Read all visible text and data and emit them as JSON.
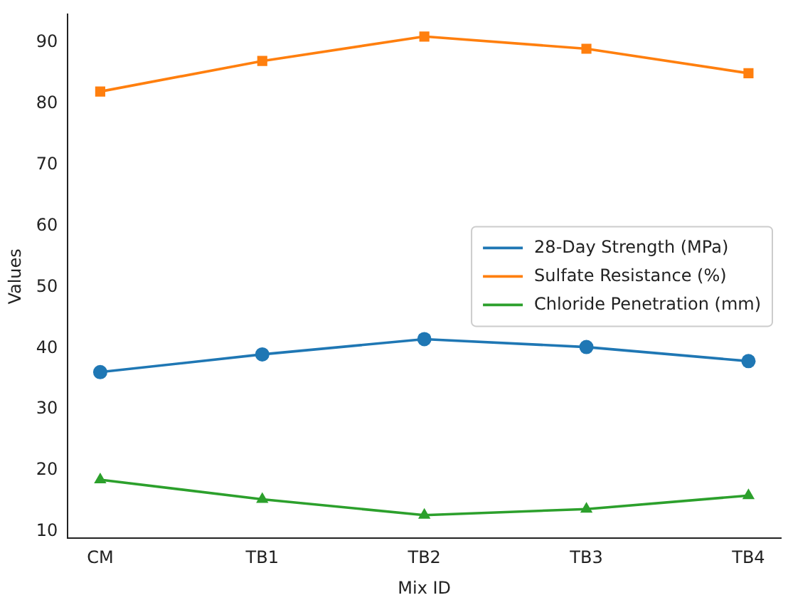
{
  "chart_data": {
    "type": "line",
    "xlabel": "Mix ID",
    "ylabel": "Values",
    "categories": [
      "CM",
      "TB1",
      "TB2",
      "TB3",
      "TB4"
    ],
    "series": [
      {
        "name": "28-Day Strength (MPa)",
        "color": "#1f77b4",
        "marker": "circle",
        "values": [
          36.1,
          39.0,
          41.5,
          40.2,
          37.9
        ]
      },
      {
        "name": "Sulfate Resistance (%)",
        "color": "#ff7f0e",
        "marker": "square",
        "values": [
          82,
          87,
          91,
          89,
          85
        ]
      },
      {
        "name": "Chloride Penetration (mm)",
        "color": "#2ca02c",
        "marker": "triangle",
        "values": [
          18.5,
          15.3,
          12.7,
          13.7,
          15.9
        ]
      }
    ],
    "ylim": [
      8.9,
      94.6
    ],
    "yticks": [
      10,
      20,
      30,
      40,
      50,
      60,
      70,
      80,
      90
    ],
    "grid": false,
    "legend": "right"
  }
}
